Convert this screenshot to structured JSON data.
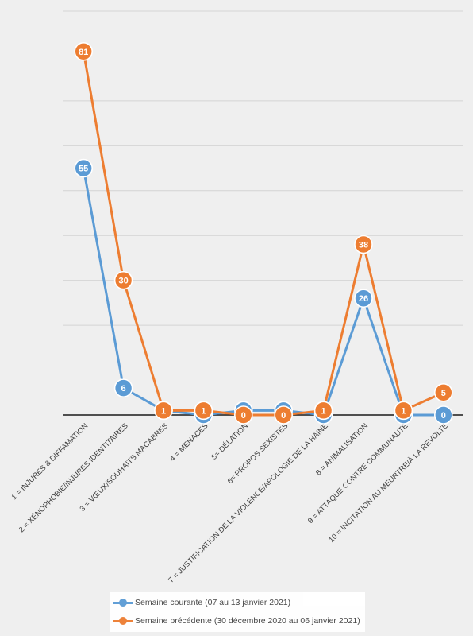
{
  "chart_data": {
    "type": "line",
    "categories": [
      "1 = INJURES & DIFFAMATION",
      "2 = XÉNOPHOBIE/INJURES IDENTITAIRES",
      "3 = VŒUX/SOUHAITS MACABRES",
      "4 = MENACES",
      "5= DÉLATION",
      "6= PROPOS SEXISTES",
      "7 = JUSTIFICATION DE LA VIOLENCE/APOLOGIE DE LA HAINE",
      "8 = ANIMALISATION",
      "9 = ATTAQUE CONTRE COMMUNAUTÉ",
      "10 = INCITATION AU MEURTRE/À LA RÉVOLTE"
    ],
    "series": [
      {
        "name": "Semaine courante (07 au 13 janvier 2021)",
        "values": [
          55,
          6,
          1,
          0,
          1,
          1,
          0,
          26,
          0,
          0
        ],
        "color": "#5b9bd5"
      },
      {
        "name": "Semaine précédente (30 décembre 2020 au 06 janvier 2021)",
        "values": [
          81,
          30,
          1,
          1,
          0,
          0,
          1,
          38,
          1,
          5
        ],
        "color": "#ed7d31"
      }
    ],
    "ylim": [
      0,
      90
    ],
    "grid": true,
    "legend_position": "bottom",
    "title": "",
    "xlabel": "",
    "ylabel": ""
  }
}
